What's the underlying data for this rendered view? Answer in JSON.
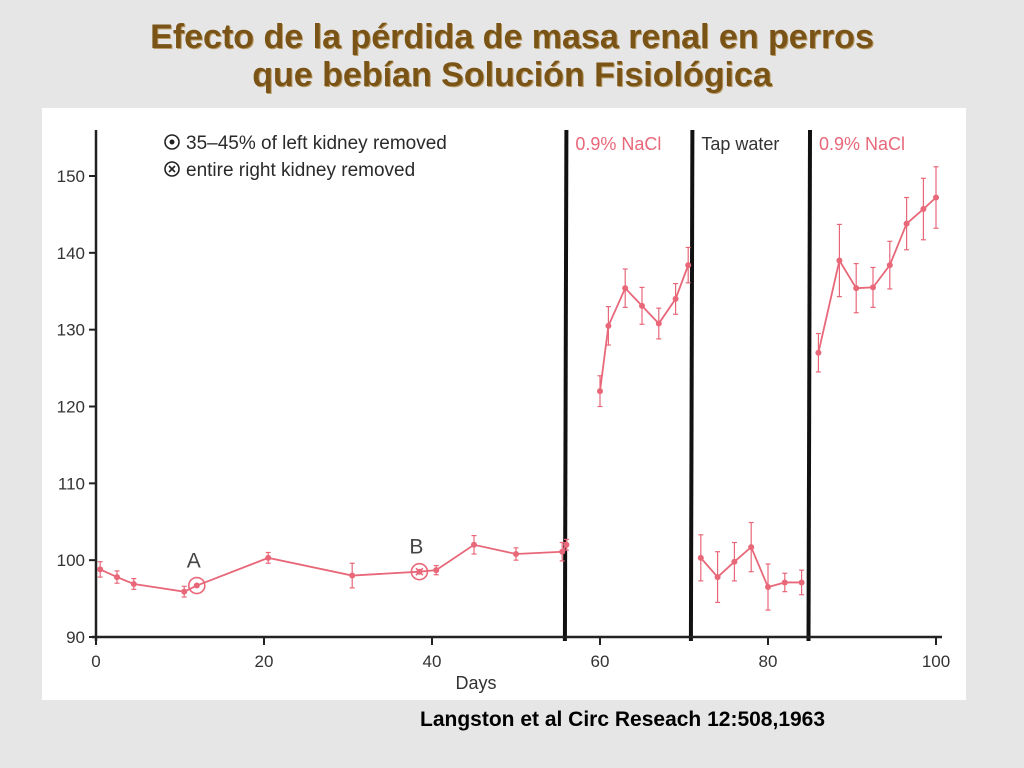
{
  "slide": {
    "title_line1": "Efecto de la pérdida de masa renal en perros",
    "title_line2": "que bebían Solución Fisiológica",
    "citation": "Langston et al Circ Reseach 12:508,1963"
  },
  "chart_data": {
    "type": "line",
    "xlabel": "Days",
    "ylabel": "",
    "xlim": [
      0,
      100
    ],
    "ylim": [
      90,
      155
    ],
    "x_ticks": [
      0,
      20,
      40,
      60,
      80,
      100
    ],
    "y_ticks": [
      90,
      100,
      110,
      120,
      130,
      140,
      150
    ],
    "grid": false,
    "series_color": "#e8687a",
    "legend": [
      {
        "symbol": "circled-dot",
        "label": "35–45% of left kidney removed"
      },
      {
        "symbol": "circled-x",
        "label": "entire right kidney removed"
      }
    ],
    "phases": [
      {
        "label": "0.9% NaCl",
        "x_start": 56,
        "x_end": 71,
        "color": "#e8687a"
      },
      {
        "label": "Tap water",
        "x_start": 71,
        "x_end": 85,
        "color": "#333333"
      },
      {
        "label": "0.9% NaCl",
        "x_start": 85,
        "x_end": 100,
        "color": "#e8687a"
      }
    ],
    "annotations": [
      {
        "label": "A",
        "x": 12,
        "y": 96.7,
        "event": "circled-dot"
      },
      {
        "label": "B",
        "x": 38.5,
        "y": 98.5,
        "event": "circled-x"
      }
    ],
    "series": [
      {
        "segments": [
          [
            {
              "x": 0.5,
              "y": 98.8,
              "err": 1.0
            },
            {
              "x": 2.5,
              "y": 97.8,
              "err": 0.8
            },
            {
              "x": 4.5,
              "y": 96.9,
              "err": 0.7
            },
            {
              "x": 10.5,
              "y": 95.9,
              "err": 0.7
            },
            {
              "x": 12,
              "y": 96.7,
              "err": 0.0
            },
            {
              "x": 20.5,
              "y": 100.3,
              "err": 0.7
            },
            {
              "x": 30.5,
              "y": 98.0,
              "err": 1.6
            },
            {
              "x": 38.5,
              "y": 98.5,
              "err": 0.0
            },
            {
              "x": 40.5,
              "y": 98.7,
              "err": 0.6
            },
            {
              "x": 45,
              "y": 102.0,
              "err": 1.2
            },
            {
              "x": 50,
              "y": 100.8,
              "err": 0.8
            },
            {
              "x": 55.5,
              "y": 101.1,
              "err": 1.2
            },
            {
              "x": 56,
              "y": 102.0,
              "err": 0.7
            }
          ],
          [
            {
              "x": 60,
              "y": 122.0,
              "err": 2.0
            },
            {
              "x": 61,
              "y": 130.5,
              "err": 2.5
            },
            {
              "x": 63,
              "y": 135.4,
              "err": 2.5
            },
            {
              "x": 65,
              "y": 133.1,
              "err": 2.4
            },
            {
              "x": 67,
              "y": 130.8,
              "err": 2.0
            },
            {
              "x": 69,
              "y": 134.0,
              "err": 2.0
            },
            {
              "x": 70.5,
              "y": 138.4,
              "err": 2.3
            }
          ],
          [
            {
              "x": 72,
              "y": 100.3,
              "err": 3.0
            },
            {
              "x": 74,
              "y": 97.8,
              "err": 3.3
            },
            {
              "x": 76,
              "y": 99.8,
              "err": 2.5
            },
            {
              "x": 78,
              "y": 101.7,
              "err": 3.2
            },
            {
              "x": 80,
              "y": 96.5,
              "err": 3.0
            },
            {
              "x": 82,
              "y": 97.1,
              "err": 1.2
            },
            {
              "x": 84,
              "y": 97.1,
              "err": 1.6
            }
          ],
          [
            {
              "x": 86,
              "y": 127.0,
              "err": 2.5
            },
            {
              "x": 88.5,
              "y": 139.0,
              "err": 4.7
            },
            {
              "x": 90.5,
              "y": 135.4,
              "err": 3.2
            },
            {
              "x": 92.5,
              "y": 135.5,
              "err": 2.6
            },
            {
              "x": 94.5,
              "y": 138.4,
              "err": 3.1
            },
            {
              "x": 96.5,
              "y": 143.8,
              "err": 3.4
            },
            {
              "x": 98.5,
              "y": 145.7,
              "err": 4.0
            },
            {
              "x": 100,
              "y": 147.2,
              "err": 4.0
            }
          ]
        ]
      }
    ]
  }
}
